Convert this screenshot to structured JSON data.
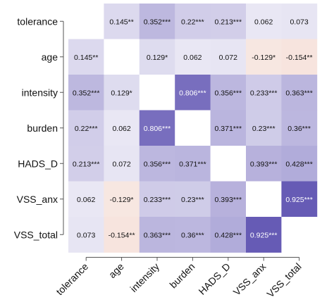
{
  "chart_data": {
    "type": "heatmap",
    "title": "",
    "xlabel": "",
    "ylabel": "",
    "variables": [
      "tolerance",
      "age",
      "intensity",
      "burden",
      "HADS_D",
      "VSS_anx",
      "VSS_total"
    ],
    "matrix": [
      [
        null,
        0.145,
        0.352,
        0.22,
        0.213,
        0.062,
        0.073
      ],
      [
        0.145,
        null,
        0.129,
        0.062,
        0.072,
        -0.129,
        -0.154
      ],
      [
        0.352,
        0.129,
        null,
        0.806,
        0.356,
        0.233,
        0.363
      ],
      [
        0.22,
        0.062,
        0.806,
        null,
        0.371,
        0.23,
        0.36
      ],
      [
        0.213,
        0.072,
        0.356,
        0.371,
        null,
        0.393,
        0.428
      ],
      [
        0.062,
        -0.129,
        0.233,
        0.23,
        0.393,
        null,
        0.925
      ],
      [
        0.073,
        -0.154,
        0.363,
        0.36,
        0.428,
        0.925,
        null
      ]
    ],
    "labels": [
      [
        "",
        "0.145**",
        "0.352***",
        "0.22***",
        "0.213***",
        "0.062",
        "0.073"
      ],
      [
        "0.145**",
        "",
        "0.129*",
        "0.062",
        "0.072",
        "-0.129*",
        "-0.154**"
      ],
      [
        "0.352***",
        "0.129*",
        "",
        "0.806***",
        "0.356***",
        "0.233***",
        "0.363***"
      ],
      [
        "0.22***",
        "0.062",
        "0.806***",
        "",
        "0.371***",
        "0.23***",
        "0.36***"
      ],
      [
        "0.213***",
        "0.072",
        "0.356***",
        "0.371***",
        "",
        "0.393***",
        "0.428***"
      ],
      [
        "0.062",
        "-0.129*",
        "0.233***",
        "0.23***",
        "0.393***",
        "",
        "0.925***"
      ],
      [
        "0.073",
        "-0.154**",
        "0.363***",
        "0.36***",
        "0.428***",
        "0.925***",
        ""
      ]
    ],
    "colors": {
      "positive": "#5b4fb0",
      "negative": "#d9846a",
      "neutral": "#ffffff",
      "text_light": "#ffffff",
      "text_dark": "#111111"
    },
    "grid": false,
    "legend": "none"
  }
}
